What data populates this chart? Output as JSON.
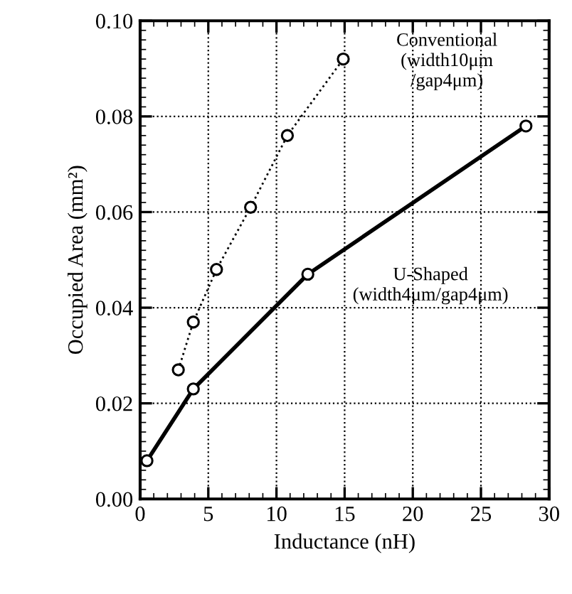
{
  "chart_data": {
    "type": "line",
    "xlabel": "Inductance (nH)",
    "ylabel": "Occupied Area (mm²)",
    "xlim": [
      0,
      30
    ],
    "ylim": [
      0,
      0.1
    ],
    "xticks": [
      0,
      5,
      10,
      15,
      20,
      25,
      30
    ],
    "yticks": [
      {
        "value": 0,
        "label": "0.00"
      },
      {
        "value": 0.02,
        "label": "0.02"
      },
      {
        "value": 0.04,
        "label": "0.04"
      },
      {
        "value": 0.06,
        "label": "0.06"
      },
      {
        "value": 0.08,
        "label": "0.08"
      },
      {
        "value": 0.1,
        "label": "0.10"
      }
    ],
    "grid": true,
    "marker": "circle",
    "annotations": [
      "Conventional\n(width10μm\n/gap4μm)",
      "U-Shaped\n(width4μm/gap4μm)"
    ],
    "series": [
      {
        "color": "#000000",
        "line_style": "dotted",
        "x": [
          2.8,
          3.9,
          5.6,
          8.1,
          10.8,
          14.9
        ],
        "values": [
          0.027,
          0.037,
          0.048,
          0.061,
          0.076,
          0.092
        ]
      },
      {
        "color": "#000000",
        "line_style": "solid",
        "x": [
          0.5,
          3.9,
          12.3,
          28.3
        ],
        "values": [
          0.008,
          0.023,
          0.047,
          0.078
        ]
      }
    ]
  }
}
